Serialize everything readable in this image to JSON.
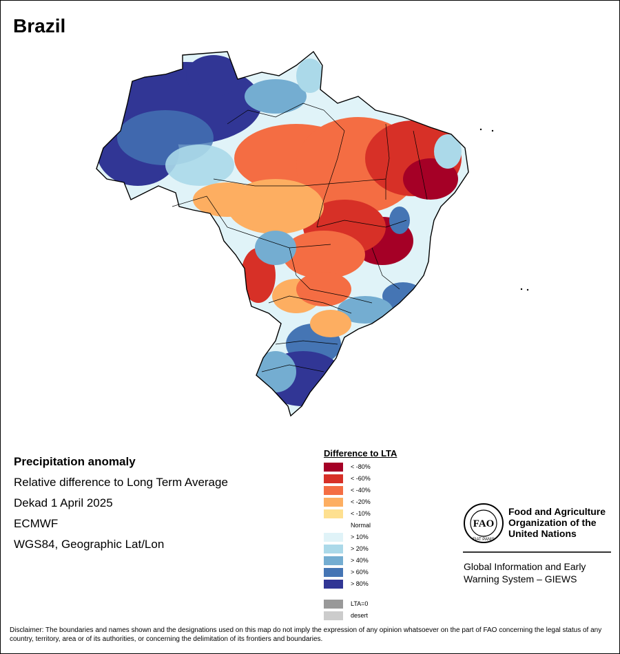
{
  "header": {
    "title": "Brazil"
  },
  "info": {
    "line1": "Precipitation anomaly",
    "line2": "Relative difference to Long Term Average",
    "line3": "Dekad 1 April 2025",
    "line4": "ECMWF",
    "line5": "WGS84, Geographic Lat/Lon"
  },
  "legend": {
    "title": "Difference to LTA",
    "items": [
      {
        "label": "< -80%",
        "color": "#a50026"
      },
      {
        "label": "< -60%",
        "color": "#d73027"
      },
      {
        "label": "< -40%",
        "color": "#f46d43"
      },
      {
        "label": "< -20%",
        "color": "#fdae61"
      },
      {
        "label": "< -10%",
        "color": "#fee090"
      },
      {
        "label": "Normal",
        "color": "#ffffff"
      },
      {
        "label": "> 10%",
        "color": "#e0f3f8"
      },
      {
        "label": "> 20%",
        "color": "#abd9e9"
      },
      {
        "label": "> 40%",
        "color": "#74add1"
      },
      {
        "label": "> 60%",
        "color": "#4575b4"
      },
      {
        "label": "> 80%",
        "color": "#313695"
      }
    ],
    "extra": [
      {
        "label": "LTA=0",
        "color": "#999999"
      },
      {
        "label": "desert",
        "color": "#cccccc"
      }
    ]
  },
  "branding": {
    "logo_text": "FAO",
    "logo_ring_text": "FIAT PANIS",
    "org_line1": "Food and Agriculture",
    "org_line2": "Organization of the",
    "org_line3": "United Nations",
    "system_line1": "Global Information and Early",
    "system_line2": "Warning System – GIEWS"
  },
  "disclaimer": "Disclaimer: The boundaries and names shown and the designations used on this map do not imply the expression of any opinion whatsoever on the part of FAO concerning the legal status of any country, territory, area or of its authorities, or concerning the delimitation of its frontiers and boundaries."
}
